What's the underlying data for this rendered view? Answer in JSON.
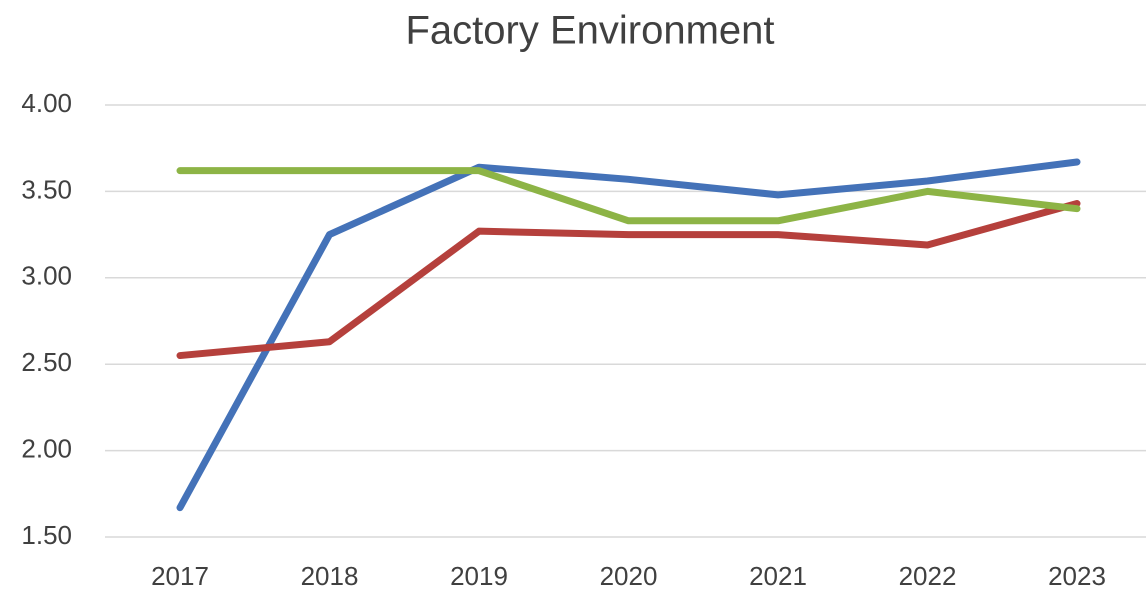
{
  "chart_data": {
    "type": "line",
    "title": "Factory Environment",
    "categories": [
      "2017",
      "2018",
      "2019",
      "2020",
      "2021",
      "2022",
      "2023"
    ],
    "series": [
      {
        "color": "#4472b8",
        "values": [
          1.67,
          3.25,
          3.64,
          3.57,
          3.48,
          3.56,
          3.67
        ]
      },
      {
        "color": "#b5403c",
        "values": [
          2.55,
          2.63,
          3.27,
          3.25,
          3.25,
          3.19,
          3.43
        ]
      },
      {
        "color": "#8db446",
        "values": [
          3.62,
          3.62,
          3.62,
          3.33,
          3.33,
          3.5,
          3.4
        ]
      }
    ],
    "ylim": [
      1.5,
      4.0
    ],
    "yticks": [
      {
        "value": 1.5,
        "label": "1.50"
      },
      {
        "value": 2.0,
        "label": "2.00"
      },
      {
        "value": 2.5,
        "label": "2.50"
      },
      {
        "value": 3.0,
        "label": "3.00"
      },
      {
        "value": 3.5,
        "label": "3.50"
      },
      {
        "value": 4.0,
        "label": "4.00"
      }
    ],
    "grid": true
  }
}
